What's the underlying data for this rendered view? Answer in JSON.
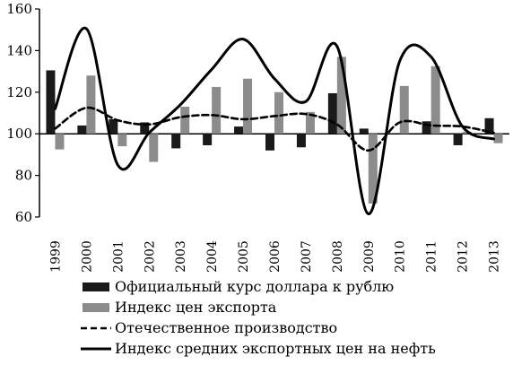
{
  "chart_data": {
    "type": "bar",
    "categories": [
      "1999",
      "2000",
      "2001",
      "2002",
      "2003",
      "2004",
      "2005",
      "2006",
      "2007",
      "2008",
      "2009",
      "2010",
      "2011",
      "2012",
      "2013"
    ],
    "ylim": [
      60,
      160
    ],
    "yticks": [
      60,
      80,
      100,
      120,
      140,
      160
    ],
    "baseline": 100,
    "grid": false,
    "legend_position": "bottom",
    "series": [
      {
        "name": "Официальный курс доллара к рублю",
        "type": "bar",
        "color": "#1a1a1a",
        "values": [
          130.5,
          104,
          107,
          105.5,
          93,
          94.5,
          103.5,
          92,
          93.5,
          119.5,
          102.5,
          null,
          106,
          94.5,
          107.5
        ]
      },
      {
        "name": "Индекс цен экспорта",
        "type": "bar",
        "color": "#8c8c8c",
        "values": [
          92.5,
          128,
          94,
          86.5,
          113,
          122.5,
          126.5,
          120,
          110.5,
          137,
          66.5,
          123,
          132.5,
          101,
          95.5
        ]
      },
      {
        "name": "Отечественное производство",
        "type": "line",
        "style": "dashed",
        "color": "#000000",
        "values": [
          102.5,
          112.5,
          106.5,
          104.5,
          108,
          109,
          107,
          108.5,
          109.5,
          104.5,
          92,
          105.5,
          104,
          103.5,
          100.5
        ]
      },
      {
        "name": "Индекс средних экспортных цен на нефть",
        "type": "line",
        "style": "solid",
        "color": "#000000",
        "values": [
          112,
          150.5,
          85,
          100.5,
          114,
          131,
          145.5,
          126.5,
          115.5,
          142,
          61.5,
          135,
          137,
          103.5,
          97.5
        ]
      }
    ]
  }
}
